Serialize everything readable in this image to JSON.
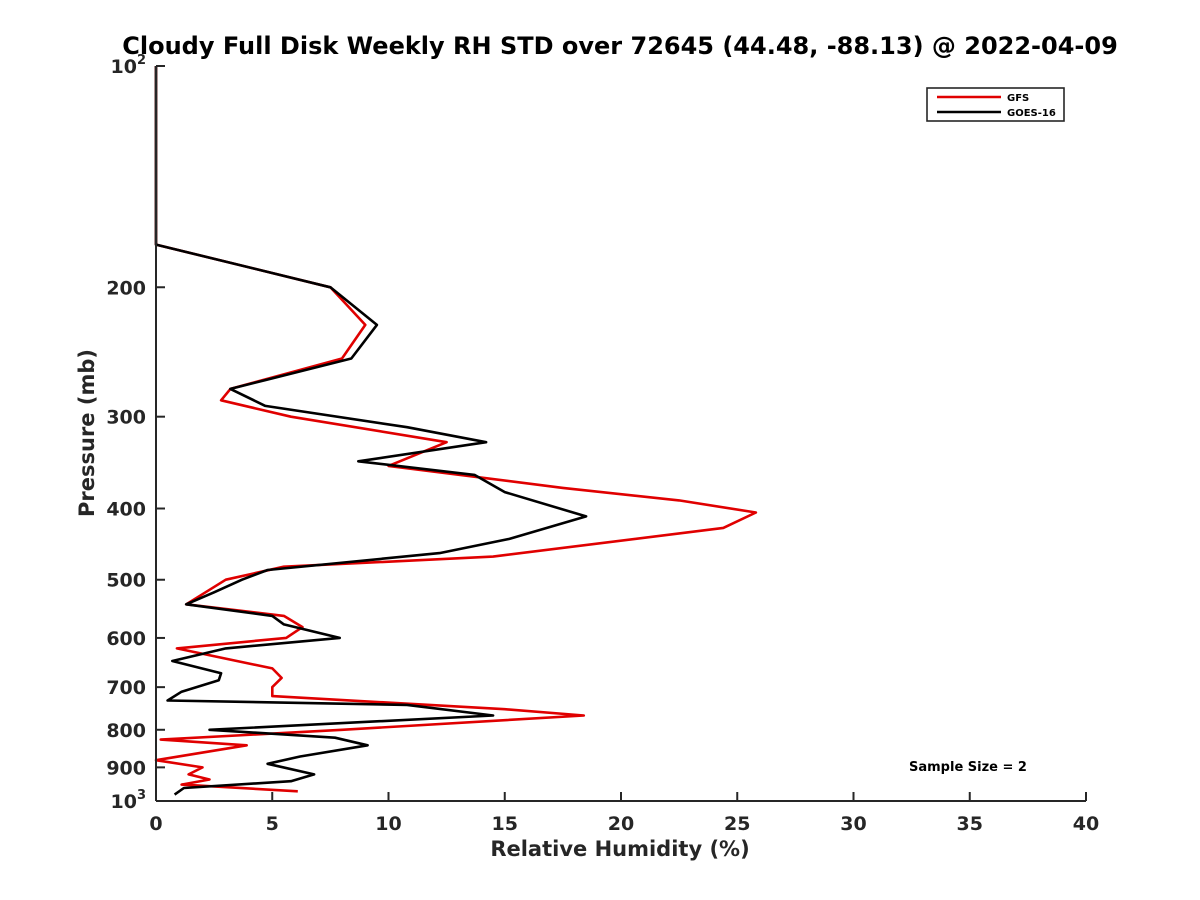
{
  "chart_data": {
    "type": "line",
    "title": "Cloudy Full Disk Weekly RH STD over 72645 (44.48, -88.13) @ 2022-04-09",
    "xlabel": "Relative Humidity (%)",
    "ylabel": "Pressure (mb)",
    "xlim": [
      0,
      40
    ],
    "ylim": [
      100,
      1000
    ],
    "y_scale": "log",
    "y_reversed": true,
    "x_ticks": [
      0,
      5,
      10,
      15,
      20,
      25,
      30,
      35,
      40
    ],
    "x_tick_labels": [
      "0",
      "5",
      "10",
      "15",
      "20",
      "25",
      "30",
      "35",
      "40"
    ],
    "y_ticks": [
      {
        "value": 100,
        "base": "10",
        "exp": "2"
      },
      {
        "value": 200,
        "label": "200"
      },
      {
        "value": 300,
        "label": "300"
      },
      {
        "value": 400,
        "label": "400"
      },
      {
        "value": 500,
        "label": "500"
      },
      {
        "value": 600,
        "label": "600"
      },
      {
        "value": 700,
        "label": "700"
      },
      {
        "value": 800,
        "label": "800"
      },
      {
        "value": 900,
        "label": "900"
      },
      {
        "value": 1000,
        "base": "10",
        "exp": "3"
      }
    ],
    "grid": false,
    "legend_position": "top-right",
    "annotation": "Sample Size = 2",
    "series": [
      {
        "name": "GFS",
        "color": "#e00000",
        "points": [
          [
            0,
            100
          ],
          [
            0,
            150
          ],
          [
            0,
            175
          ],
          [
            7.5,
            200
          ],
          [
            9.0,
            225
          ],
          [
            8.0,
            250
          ],
          [
            3.2,
            275
          ],
          [
            2.8,
            285
          ],
          [
            5.8,
            300
          ],
          [
            12.5,
            325
          ],
          [
            10.0,
            350
          ],
          [
            17.5,
            375
          ],
          [
            22.5,
            390
          ],
          [
            25.8,
            405
          ],
          [
            24.4,
            425
          ],
          [
            14.5,
            465
          ],
          [
            5.5,
            480
          ],
          [
            3.0,
            500
          ],
          [
            1.3,
            540
          ],
          [
            5.5,
            560
          ],
          [
            6.3,
            580
          ],
          [
            5.6,
            600
          ],
          [
            0.9,
            620
          ],
          [
            5.0,
            660
          ],
          [
            5.4,
            680
          ],
          [
            5.0,
            700
          ],
          [
            5.0,
            720
          ],
          [
            15.0,
            750
          ],
          [
            18.4,
            765
          ],
          [
            8.0,
            800
          ],
          [
            0.2,
            825
          ],
          [
            3.9,
            840
          ],
          [
            0,
            880
          ],
          [
            2.0,
            900
          ],
          [
            1.4,
            920
          ],
          [
            2.3,
            935
          ],
          [
            1.1,
            950
          ],
          [
            6.1,
            970
          ]
        ]
      },
      {
        "name": "GOES-16",
        "color": "#000000",
        "points": [
          [
            0,
            100
          ],
          [
            0,
            150
          ],
          [
            0,
            175
          ],
          [
            7.5,
            200
          ],
          [
            9.5,
            225
          ],
          [
            8.4,
            250
          ],
          [
            3.2,
            275
          ],
          [
            4.7,
            290
          ],
          [
            10.8,
            310
          ],
          [
            14.2,
            325
          ],
          [
            8.7,
            345
          ],
          [
            13.7,
            360
          ],
          [
            15.0,
            380
          ],
          [
            18.5,
            410
          ],
          [
            15.2,
            440
          ],
          [
            12.2,
            460
          ],
          [
            4.8,
            485
          ],
          [
            3.7,
            500
          ],
          [
            2.5,
            520
          ],
          [
            1.3,
            540
          ],
          [
            5.0,
            560
          ],
          [
            5.5,
            575
          ],
          [
            7.9,
            600
          ],
          [
            3.0,
            620
          ],
          [
            0.7,
            645
          ],
          [
            2.8,
            670
          ],
          [
            2.7,
            685
          ],
          [
            1.1,
            710
          ],
          [
            0.5,
            730
          ],
          [
            10.8,
            740
          ],
          [
            14.5,
            765
          ],
          [
            2.3,
            800
          ],
          [
            7.7,
            820
          ],
          [
            9.1,
            840
          ],
          [
            6.2,
            870
          ],
          [
            4.8,
            890
          ],
          [
            6.8,
            920
          ],
          [
            5.8,
            940
          ],
          [
            1.2,
            960
          ],
          [
            0.8,
            980
          ]
        ]
      }
    ]
  }
}
